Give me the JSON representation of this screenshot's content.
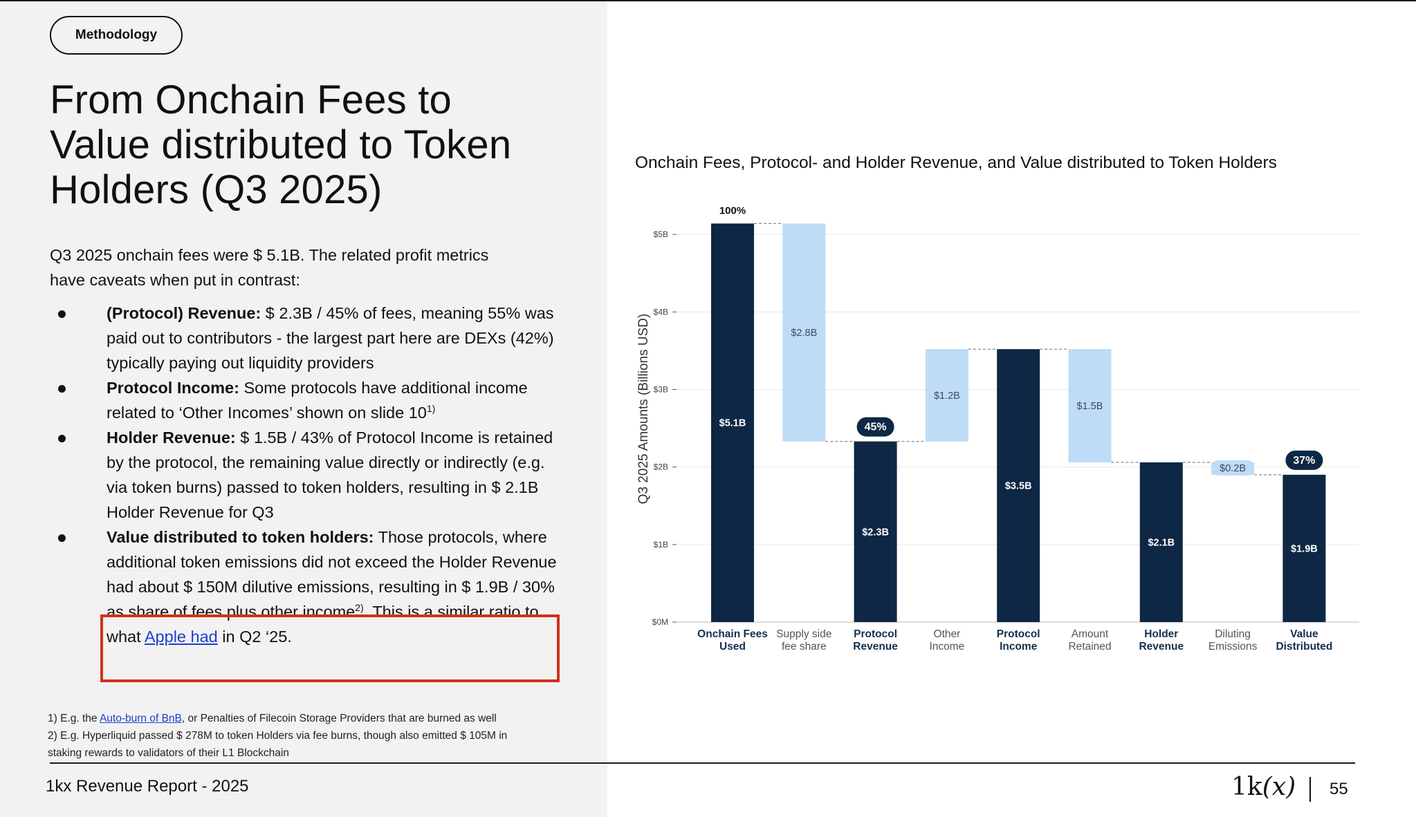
{
  "section_label": "Methodology",
  "title_lines": [
    "From Onchain Fees to",
    "Value distributed to Token",
    "Holders (Q3 2025)"
  ],
  "intro": {
    "line1": "Q3 2025 onchain fees were $ 5.1B. The related profit metrics",
    "line2": "have caveats when put in contrast:"
  },
  "bullets": [
    {
      "bold": "(Protocol) Revenue:",
      "text": " $ 2.3B / 45% of fees, meaning 55% was paid out to contributors - the largest part here are DEXs (42%) typically paying out liquidity providers"
    },
    {
      "bold": "Protocol Income:",
      "text": " Some protocols have additional income related to ‘Other Incomes’ shown on slide 10",
      "sup": "1)"
    },
    {
      "bold": "Holder Revenue:",
      "text": " $ 1.5B / 43% of Protocol Income is retained by the protocol, the remaining value directly or indirectly (e.g. via token burns) passed to token holders, resulting in $ 2.1B Holder Revenue for Q3"
    },
    {
      "bold": "Value distributed to token holders:",
      "text": " Those protocols, where additional token emissions did not exceed the Holder Revenue had about $ 150M dilutive emissions, resulting in $ 1.9B / 30% as share of fees plus other income",
      "sup": "2)",
      "text2": ". This is a similar ratio to what ",
      "link": "Apple had",
      "text3": " in Q2 ‘25."
    }
  ],
  "footnotes": {
    "f1_pre": "1) E.g. the ",
    "f1_link": "Auto-burn of BnB",
    "f1_post": ", or Penalties of Filecoin Storage Providers that are burned as well",
    "f2_line1": "2) E.g. Hyperliquid passed $ 278M to token Holders via fee burns, though also emitted $ 105M in",
    "f2_line2": "staking rewards to validators of their L1 Blockchain"
  },
  "footer": {
    "report": "1kx Revenue Report  - 2025",
    "logo_text": "1k",
    "logo_italic": "(x)",
    "page": "55"
  },
  "colors": {
    "dark_bar": "#0e2744",
    "light_bar": "#bfdcf7",
    "highlight": "#d1311b",
    "link": "#1d3fc9"
  },
  "chart_data": {
    "type": "waterfall",
    "title": "Onchain Fees, Protocol- and Holder Revenue, and Value distributed to Token Holders",
    "ylabel": "Q3 2025 Amounts (Billions USD)",
    "ylim": [
      0,
      5.5
    ],
    "yticks": [
      0,
      1,
      2,
      3,
      4,
      5
    ],
    "ytick_labels": [
      "$0M",
      "$1B",
      "$2B",
      "$3B",
      "$4B",
      "$5B"
    ],
    "grid": true,
    "categories": [
      [
        "Onchain Fees",
        "Used"
      ],
      [
        "Supply side",
        "fee share"
      ],
      [
        "Protocol",
        "Revenue"
      ],
      [
        "Other",
        "Income"
      ],
      [
        "Protocol",
        "Income"
      ],
      [
        "Amount",
        "Retained"
      ],
      [
        "Holder",
        "Revenue"
      ],
      [
        "Diluting",
        "Emissions"
      ],
      [
        "Value",
        "Distributed"
      ]
    ],
    "category_bold": [
      true,
      false,
      true,
      false,
      true,
      false,
      true,
      false,
      true
    ],
    "bars": [
      {
        "kind": "total",
        "bottom": 0,
        "top": 5.14,
        "label": "$5.1B"
      },
      {
        "kind": "delta",
        "bottom": 2.33,
        "top": 5.14,
        "label": "$2.8B"
      },
      {
        "kind": "total",
        "bottom": 0,
        "top": 2.33,
        "label": "$2.3B"
      },
      {
        "kind": "delta",
        "bottom": 2.33,
        "top": 3.52,
        "label": "$1.2B"
      },
      {
        "kind": "total",
        "bottom": 0,
        "top": 3.52,
        "label": "$3.5B"
      },
      {
        "kind": "delta",
        "bottom": 2.06,
        "top": 3.52,
        "label": "$1.5B"
      },
      {
        "kind": "total",
        "bottom": 0,
        "top": 2.06,
        "label": "$2.1B"
      },
      {
        "kind": "delta",
        "bottom": 1.9,
        "top": 2.06,
        "label": "$0.2B"
      },
      {
        "kind": "total",
        "bottom": 0,
        "top": 1.9,
        "label": "$1.9B"
      }
    ],
    "annotations": [
      {
        "bar": 0,
        "text": "100%",
        "style": "plain"
      },
      {
        "bar": 2,
        "text": "45%",
        "style": "badge"
      },
      {
        "bar": 8,
        "text": "37%",
        "style": "badge"
      }
    ]
  }
}
